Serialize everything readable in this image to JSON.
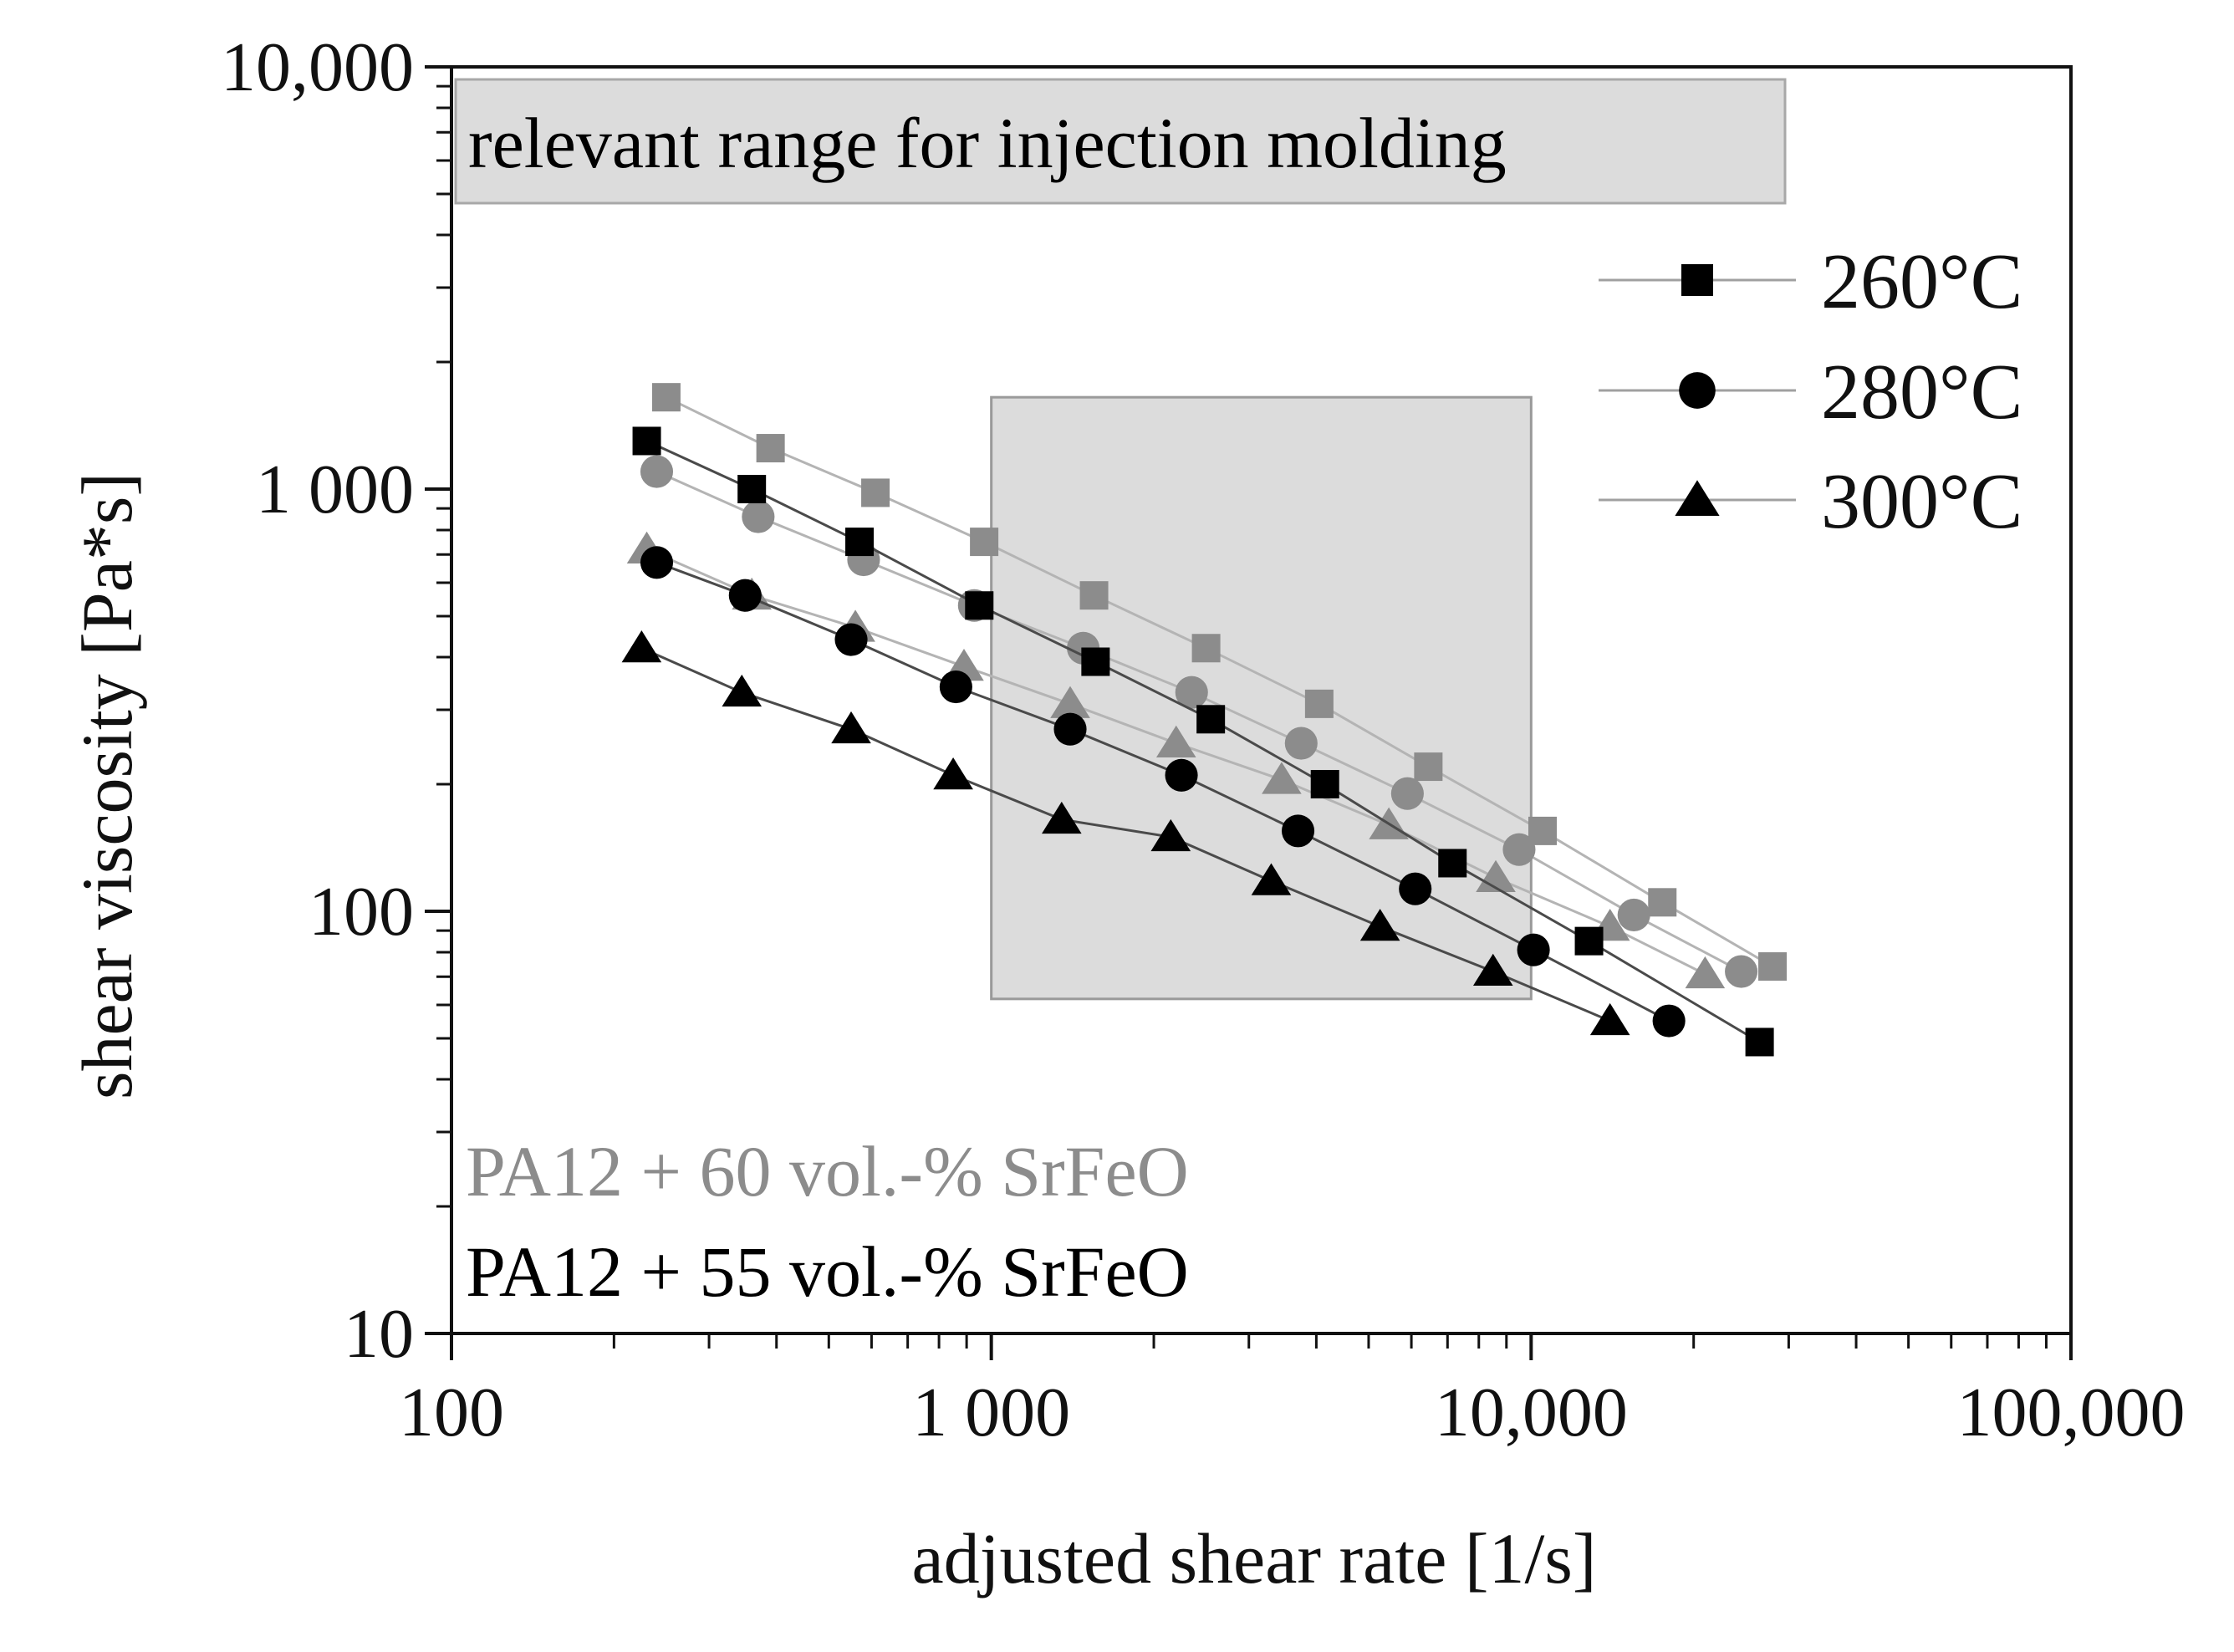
{
  "chart_data": {
    "type": "scatter",
    "title": "",
    "xlabel": "adjusted shear rate [1/s]",
    "ylabel": "shear viscosity [Pa*s]",
    "x_scale": "log",
    "y_scale": "log",
    "xlim": [
      100,
      100000
    ],
    "ylim": [
      10,
      10000
    ],
    "x_ticks": [
      {
        "value": 100,
        "label": "100"
      },
      {
        "value": 1000,
        "label": "1 000"
      },
      {
        "value": 10000,
        "label": "10,000"
      },
      {
        "value": 100000,
        "label": "100,000"
      }
    ],
    "y_ticks": [
      {
        "value": 10,
        "label": "10"
      },
      {
        "value": 100,
        "label": "100"
      },
      {
        "value": 1000,
        "label": "1 000"
      },
      {
        "value": 10000,
        "label": "10,000"
      }
    ],
    "grid": false,
    "legend_position": "top-right",
    "legend": [
      {
        "label": "260°C",
        "marker": "square"
      },
      {
        "label": "280°C",
        "marker": "circle"
      },
      {
        "label": "300°C",
        "marker": "triangle"
      }
    ],
    "annotations": [
      {
        "text": "relevant range for injection molding",
        "color": "#111111"
      },
      {
        "text": "PA12 + 60 vol.-% SrFeO",
        "color": "#8c8c8c"
      },
      {
        "text": "PA12 + 55 vol.-% SrFeO",
        "color": "#000000"
      }
    ],
    "highlight_region": {
      "x": [
        1000,
        10000
      ],
      "y": [
        62,
        1650
      ]
    },
    "colors": {
      "pa12_55": "#000000",
      "pa12_60": "#8c8c8c",
      "line_55": "#4a4a4a",
      "line_60": "#b4b4b4",
      "shading": "#dcdcdc"
    },
    "series": [
      {
        "material": "PA12 + 60 vol.-% SrFeO",
        "temperature": "260°C",
        "marker": "square",
        "x": [
          250,
          390,
          610,
          970,
          1550,
          2500,
          4050,
          6450,
          10500,
          17500,
          28000
        ],
        "y": [
          1650,
          1250,
          980,
          750,
          560,
          420,
          310,
          220,
          155,
          105,
          74
        ]
      },
      {
        "material": "PA12 + 60 vol.-% SrFeO",
        "temperature": "280°C",
        "marker": "circle",
        "x": [
          240,
          370,
          580,
          930,
          1480,
          2350,
          3750,
          5900,
          9500,
          15500,
          24500
        ],
        "y": [
          1100,
          860,
          680,
          530,
          420,
          330,
          250,
          190,
          140,
          98,
          72
        ]
      },
      {
        "material": "PA12 + 60 vol.-% SrFeO",
        "temperature": "300°C",
        "marker": "triangle",
        "x": [
          230,
          360,
          560,
          890,
          1400,
          2200,
          3450,
          5450,
          8600,
          14000,
          21000
        ],
        "y": [
          720,
          560,
          470,
          380,
          310,
          250,
          205,
          160,
          120,
          92,
          71
        ]
      },
      {
        "material": "PA12 + 55 vol.-% SrFeO",
        "temperature": "260°C",
        "marker": "square",
        "x": [
          230,
          360,
          570,
          950,
          1560,
          2550,
          4150,
          7150,
          12800,
          26500
        ],
        "y": [
          1300,
          1000,
          750,
          530,
          390,
          285,
          200,
          130,
          85,
          49
        ]
      },
      {
        "material": "PA12 + 55 vol.-% SrFeO",
        "temperature": "280°C",
        "marker": "circle",
        "x": [
          240,
          350,
          550,
          860,
          1400,
          2250,
          3700,
          6100,
          10100,
          18000
        ],
        "y": [
          670,
          560,
          440,
          340,
          270,
          210,
          155,
          113,
          81,
          55
        ]
      },
      {
        "material": "PA12 + 55 vol.-% SrFeO",
        "temperature": "300°C",
        "marker": "triangle",
        "x": [
          225,
          345,
          550,
          850,
          1350,
          2150,
          3300,
          5250,
          8500,
          14000
        ],
        "y": [
          420,
          330,
          270,
          210,
          165,
          150,
          118,
          92,
          72,
          55
        ]
      }
    ]
  }
}
